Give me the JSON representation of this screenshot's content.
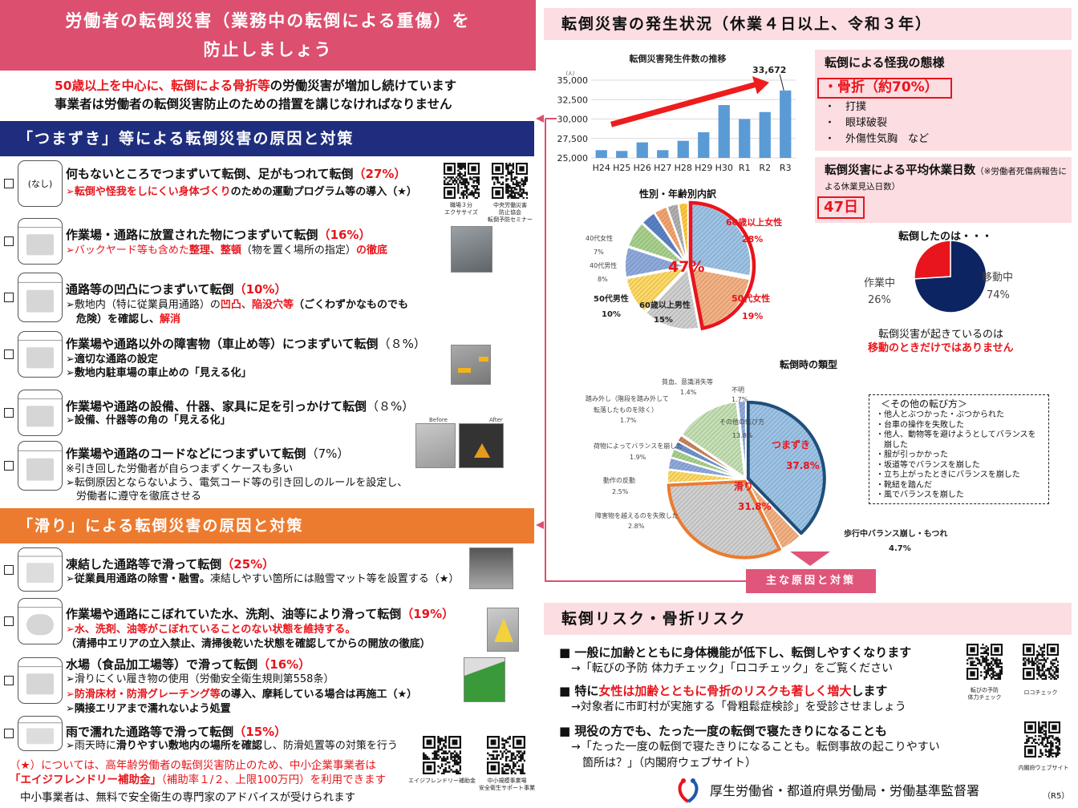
{
  "left": {
    "header_lines": [
      "労働者の転倒災害（業務中の転倒による重傷）を",
      "防止しましょう"
    ],
    "intro": [
      [
        {
          "t": "50歳以上を中心に、転倒による骨折等",
          "s": "rb"
        },
        {
          "t": "の労働災害が増加し続けています",
          "s": "b"
        }
      ],
      [
        {
          "t": "事業者は労働者の転倒災害防止のための措置を講じなければなりません",
          "s": "b"
        }
      ]
    ],
    "section1_title": "「つまずき」等による転倒災害の原因と対策",
    "section2_title": "「滑り」による転倒災害の原因と対策",
    "section1_color": "#1e2d7d",
    "section2_color": "#ec7b2f",
    "items": [
      {
        "icon": "none-icon",
        "icon_text": "(なし)",
        "title": [
          {
            "t": "何もないところでつまずいて転倒、足がもつれて転倒",
            "s": "b"
          },
          {
            "t": "（27%）",
            "s": "rb"
          }
        ],
        "lines": [
          [
            {
              "t": "➢転倒や怪我をしにくい身体づくり",
              "s": "rb"
            },
            {
              "t": "のための運動プログラム等の導入（★）",
              "s": "b"
            }
          ]
        ],
        "qr_labels": [
          "職場３分\nエクササイズ",
          "中央労働災害\n防止協会\n転倒予防セミナー"
        ]
      },
      {
        "icon": "boxes-icon",
        "title": [
          {
            "t": "作業場・通路に放置された物につまずいて転倒",
            "s": "b"
          },
          {
            "t": "（16%）",
            "s": "rb"
          }
        ],
        "lines": [
          [
            {
              "t": "➢バックヤード等も含めた",
              "s": "r"
            },
            {
              "t": "整理、整頓",
              "s": "rb"
            },
            {
              "t": "（物を置く場所の指定）",
              "s": "n"
            },
            {
              "t": "の徹底",
              "s": "rb"
            }
          ]
        ]
      },
      {
        "icon": "uneven-floor-icon",
        "title": [
          {
            "t": "通路等の凹凸につまずいて転倒",
            "s": "b"
          },
          {
            "t": "（10%）",
            "s": "rb"
          }
        ],
        "lines": [
          [
            {
              "t": "➢敷地内（特に従業員用通路）の",
              "s": "n"
            },
            {
              "t": "凹凸",
              "s": "rb"
            },
            {
              "t": "、",
              "s": "n"
            },
            {
              "t": "陥没穴等",
              "s": "rb"
            },
            {
              "t": "（ごくわずかなものでも",
              "s": "b"
            }
          ],
          [
            {
              "t": "　危険）を確認し、",
              "s": "b"
            },
            {
              "t": "解消",
              "s": "rb"
            }
          ]
        ]
      },
      {
        "icon": "car-stop-icon",
        "title": [
          {
            "t": "作業場や通路以外の障害物（車止め等）につまずいて転倒",
            "s": "b"
          },
          {
            "t": "（８%）",
            "s": "n"
          }
        ],
        "lines": [
          [
            {
              "t": "➢適切な通路の設定",
              "s": "b"
            }
          ],
          [
            {
              "t": "➢敷地内駐車場の車止めの「見える化」",
              "s": "b"
            }
          ]
        ]
      },
      {
        "icon": "whiteboard-icon",
        "title": [
          {
            "t": "作業場や通路の設備、什器、家具に足を引っかけて転倒",
            "s": "b"
          },
          {
            "t": "（８%）",
            "s": "n"
          }
        ],
        "lines": [
          [
            {
              "t": "➢設備、什器等の角の「見える化」",
              "s": "b"
            }
          ]
        ],
        "photo_labels": [
          "Before",
          "After"
        ]
      },
      {
        "icon": "cord-icon",
        "title": [
          {
            "t": "作業場や通路のコードなどにつまずいて転倒",
            "s": "b"
          },
          {
            "t": "（7%）",
            "s": "n"
          }
        ],
        "lines": [
          [
            {
              "t": "※引き回した労働者が自らつまずくケースも多い",
              "s": "n"
            }
          ],
          [
            {
              "t": "➢転倒原因とならないよう、電気コード等の引き回しのルールを設定し、",
              "s": "n"
            }
          ],
          [
            {
              "t": "　労働者に遵守を徹底させる",
              "s": "n"
            }
          ]
        ]
      },
      {
        "icon": "snowflake-icon",
        "title": [
          {
            "t": "凍結した通路等で滑って転倒",
            "s": "b"
          },
          {
            "t": "（25%）",
            "s": "rb"
          }
        ],
        "lines": [
          [
            {
              "t": "➢従業員用通路の除雪・融雪。",
              "s": "b"
            },
            {
              "t": "凍結しやすい箇所には融雪マット等を設置する（★）",
              "s": "n"
            }
          ]
        ]
      },
      {
        "icon": "spill-icon",
        "title": [
          {
            "t": "作業場や通路にこぼれていた水、洗剤、油等により滑って転倒",
            "s": "b"
          },
          {
            "t": "（19%）",
            "s": "rb"
          }
        ],
        "lines": [
          [
            {
              "t": "➢水、洗剤、油等がこぼれていることのない状態を維持する。",
              "s": "rb"
            }
          ],
          [
            {
              "t": "（清掃中エリアの立入禁止、清掃後乾いた状態を確認してからの開放の徹底）",
              "s": "b"
            }
          ]
        ]
      },
      {
        "icon": "kitchen-icon",
        "title": [
          {
            "t": "水場（食品加工場等）で滑って転倒",
            "s": "b"
          },
          {
            "t": "（16%）",
            "s": "rb"
          }
        ],
        "lines": [
          [
            {
              "t": "➢滑りにくい履き物の使用（労働安全衛生規則第558条）",
              "s": "n"
            }
          ],
          [
            {
              "t": "➢防滑床材・防滑グレーチング等",
              "s": "rb"
            },
            {
              "t": "の導入、摩耗している場合は再施工（★）",
              "s": "b"
            }
          ],
          [
            {
              "t": "➢隣接エリアまで濡れないよう処置",
              "s": "b"
            }
          ]
        ]
      },
      {
        "icon": "rain-icon",
        "title": [
          {
            "t": "雨で濡れた通路等で滑って転倒",
            "s": "b"
          },
          {
            "t": "（15%）",
            "s": "rb"
          }
        ],
        "lines": [
          [
            {
              "t": "➢雨天時に",
              "s": "n"
            },
            {
              "t": "滑りやすい敷地内の場所を確認",
              "s": "b"
            },
            {
              "t": "し、防滑処置等の対策を行う",
              "s": "n"
            }
          ]
        ]
      }
    ],
    "footer": [
      [
        {
          "t": "（★）については、高年齢労働者の転倒災害防止のため、中小企業事業者は",
          "s": "r"
        }
      ],
      [
        {
          "t": "「エイジフレンドリー補助金」",
          "s": "rb"
        },
        {
          "t": "（補助率１/２、上限100万円）を利用できます",
          "s": "r"
        }
      ],
      [
        {
          "t": "中小事業者は、無料で安全衛生の専門家のアドバイスが受けられます",
          "s": "n"
        }
      ]
    ],
    "footer_qr_labels": [
      "エイジフレンドリー補助金",
      "中小規模事業場\n安全衛生サポート事業"
    ]
  },
  "right": {
    "header": "転倒災害の発生状況（休業４日以上、令和３年）",
    "injury": {
      "title": "転倒による怪我の態様",
      "highlight": "・骨折（約70%）",
      "items": [
        "打撲",
        "眼球破裂",
        "外傷性気胸　など"
      ]
    },
    "leave": {
      "title": "転倒災害による平均休業日数",
      "note": "（※労働者死傷病報告による休業見込日数）",
      "value": "47日"
    },
    "moving": {
      "caption1": "転倒災害が起きているのは",
      "caption2": "移動のときだけではありません"
    },
    "other_ways": {
      "title": "＜その他の転び方＞",
      "items": [
        "他人とぶつかった・ぶつかられた",
        "台車の操作を失敗した",
        "他人、動物等を避けようとしてバランスを崩した",
        "服が引っかかった",
        "坂道等でバランスを崩した",
        "立ち上がったときにバランスを崩した",
        "靴紐を踏んだ",
        "風でバランスを崩した"
      ]
    },
    "cause_button": "主な原因と対策",
    "risk_header": "転倒リスク・骨折リスク",
    "risk": [
      {
        "title": [
          {
            "t": "■ 一般に加齢とともに身体機能が低下し、転倒しやすくなります",
            "s": "b"
          }
        ],
        "subs": [
          "→「転びの予防 体力チェック」「ロコチェック」をご覧ください"
        ]
      },
      {
        "title": [
          {
            "t": "■ 特に",
            "s": "b"
          },
          {
            "t": "女性は加齢とともに骨折のリスクも著しく増大",
            "s": "rb"
          },
          {
            "t": "します",
            "s": "b"
          }
        ],
        "subs": [
          "→対象者に市町村が実施する「骨粗鬆症検診」を受診させましょう"
        ]
      },
      {
        "title": [
          {
            "t": "■ 現役の方でも、たった一度の転倒で寝たきりになることも",
            "s": "b"
          }
        ],
        "subs": [
          "→「たった一度の転倒で寝たきりになることも。転倒事故の起こりやすい",
          "　箇所は？」（内閣府ウェブサイト）"
        ]
      }
    ],
    "risk_qr_labels": [
      "転びの予防\n体力チェック",
      "ロコチェック",
      "内閣府ウェブサイト"
    ],
    "org": "厚生労働省・都道府県労働局・労働基準監督署",
    "edition": "（R5）",
    "accent": "#e8151c",
    "pink": "#fbdde2"
  },
  "chart_data": [
    {
      "type": "bar",
      "title": "転倒災害発生件数の推移",
      "ylabel": "（人）",
      "categories": [
        "H24",
        "H25",
        "H26",
        "H27",
        "H28",
        "H29",
        "H30",
        "R1",
        "R2",
        "R3"
      ],
      "values": [
        26000,
        25900,
        27000,
        26000,
        27200,
        28300,
        31800,
        30000,
        30900,
        33672
      ],
      "ylim": [
        25000,
        35000
      ],
      "yticks": [
        "25,000",
        "27,500",
        "30,000",
        "32,500",
        "35,000"
      ],
      "data_label": "33,672",
      "bar_color": "#5b9bd5",
      "trend_arrow": "up",
      "grid": true
    },
    {
      "type": "pie",
      "title": "性別・年齢別内訳",
      "highlight_label": "47%",
      "slices": [
        {
          "name": "60歳以上女性",
          "label": "28%",
          "value": 28,
          "color": "#9dc3e6"
        },
        {
          "name": "50代女性",
          "label": "19%",
          "value": 19,
          "color": "#f4b183"
        },
        {
          "name": "60歳以上男性",
          "label": "15%",
          "value": 15,
          "color": "#d0d0d0"
        },
        {
          "name": "50代男性",
          "label": "10%",
          "value": 10,
          "color": "#ffd966"
        },
        {
          "name": "40代男性",
          "label": "8%",
          "value": 8,
          "color": "#8faadc"
        },
        {
          "name": "40代女性",
          "label": "7%",
          "value": 7,
          "color": "#a9d18e"
        },
        {
          "name": "",
          "value": 4,
          "color": "#5b82c4"
        },
        {
          "name": "",
          "value": 3.5,
          "color": "#f4a46f"
        },
        {
          "name": "",
          "value": 3,
          "color": "#b0b0b0"
        },
        {
          "name": "",
          "value": 2.5,
          "color": "#ffc940"
        }
      ]
    },
    {
      "type": "pie",
      "title": "転倒したのは・・・",
      "slices": [
        {
          "name": "移動中",
          "label": "74%",
          "value": 74,
          "color": "#0c2461"
        },
        {
          "name": "作業中",
          "label": "26%",
          "value": 26,
          "color": "#e8151c"
        }
      ]
    },
    {
      "type": "pie",
      "title": "転倒時の類型",
      "slices": [
        {
          "name": "つまずき",
          "label": "37.8%",
          "value": 37.8,
          "color": "#9dc3e6"
        },
        {
          "name": "歩行中バランス崩し・もつれ",
          "label": "4.7%",
          "value": 4.7,
          "color": "#f4b183"
        },
        {
          "name": "滑り",
          "label": "31.8%",
          "value": 31.8,
          "color": "#d0d0d0"
        },
        {
          "name": "障害物を越えるのを失敗した",
          "label": "2.8%",
          "value": 2.8,
          "color": "#ffd966"
        },
        {
          "name": "動作の反動",
          "label": "2.5%",
          "value": 2.5,
          "color": "#8faadc"
        },
        {
          "name": "荷物によってバランスを崩した",
          "label": "1.9%",
          "value": 1.9,
          "color": "#a9d18e"
        },
        {
          "name": "踏み外し（階段を踏み外して転落したものを除く）",
          "name_lines": [
            "踏み外し（階段を踏み外して",
            "転落したものを除く）"
          ],
          "label": "1.7%",
          "value": 1.7,
          "color": "#6f93d0"
        },
        {
          "name": "貧血、意識消失等",
          "label": "1.4%",
          "value": 1.4,
          "color": "#c9855a"
        },
        {
          "name": "その他の転び方",
          "label": "13.8%",
          "value": 13.8,
          "color": "#c5e0b4"
        },
        {
          "name": "不明",
          "label": "1.7%",
          "value": 1.7,
          "color": "#8faadc"
        }
      ]
    }
  ]
}
